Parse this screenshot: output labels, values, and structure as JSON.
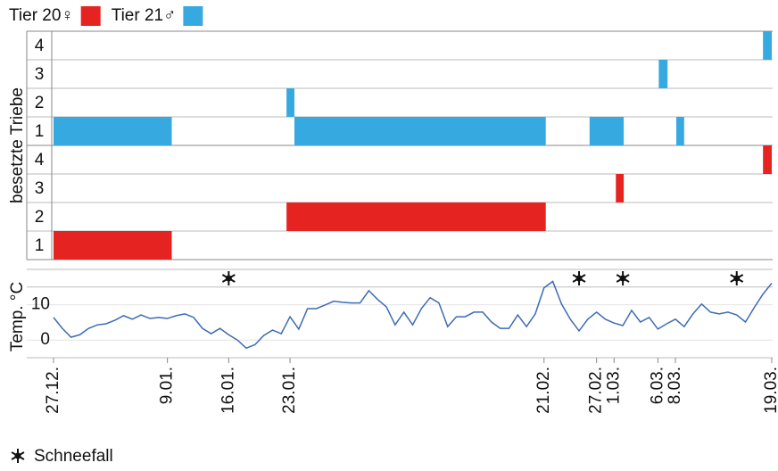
{
  "chart_data": {
    "type": "occupancy-timeline",
    "series": [
      {
        "name": "Tier 20♀",
        "color": "#e52421",
        "bars": [
          {
            "level": 1,
            "x": [
              0,
              13.5
            ]
          },
          {
            "level": 2,
            "x": [
              26.6,
              56.2
            ]
          },
          {
            "level": 3,
            "x": [
              64.2,
              65.1
            ]
          },
          {
            "level": 4,
            "x": [
              81,
              82
            ]
          }
        ]
      },
      {
        "name": "Tier 21♂",
        "color": "#36a9e1",
        "bars": [
          {
            "level": 1,
            "x": [
              0,
              13.5
            ]
          },
          {
            "level": 1,
            "x": [
              27.5,
              56.2
            ]
          },
          {
            "level": 1,
            "x": [
              61.2,
              65.1
            ]
          },
          {
            "level": 1,
            "x": [
              71.1,
              72
            ]
          },
          {
            "level": 2,
            "x": [
              26.6,
              27.5
            ]
          },
          {
            "level": 3,
            "x": [
              69.1,
              70.1
            ]
          },
          {
            "level": 4,
            "x": [
              81,
              82
            ]
          }
        ]
      }
    ],
    "levels": [
      "1",
      "2",
      "3",
      "4"
    ],
    "ylabel": "besetzte Triebe",
    "xlim": [
      0,
      82
    ],
    "xticks": [
      {
        "value": 0,
        "label": "27.12."
      },
      {
        "value": 13,
        "label": "9.01."
      },
      {
        "value": 20,
        "label": "16.01."
      },
      {
        "value": 27,
        "label": "23.01."
      },
      {
        "value": 56,
        "label": "21.02."
      },
      {
        "value": 62,
        "label": "27.02."
      },
      {
        "value": 64,
        "label": "1.03."
      },
      {
        "value": 69,
        "label": "6.03."
      },
      {
        "value": 71,
        "label": "8.03."
      },
      {
        "value": 82,
        "label": "19.03."
      }
    ],
    "temperature": {
      "type": "line",
      "ylabel": "Temp. °C",
      "color": "#3b6bb5",
      "ylim": [
        -5,
        20
      ],
      "yticks": [
        0,
        10
      ],
      "grid_values": [
        -5,
        15
      ],
      "values": [
        6.4,
        3.3,
        0.8,
        1.5,
        3.3,
        4.3,
        4.6,
        5.6,
        6.9,
        5.9,
        7.1,
        6.1,
        6.4,
        6.1,
        6.9,
        7.4,
        6.4,
        3.3,
        1.8,
        3.3,
        1.5,
        0,
        -2.3,
        -1.3,
        1.3,
        2.8,
        1.8,
        6.6,
        3.1,
        8.9,
        8.9,
        9.9,
        11.0,
        10.7,
        10.5,
        10.5,
        14.0,
        11.5,
        9.4,
        4.3,
        7.9,
        4.3,
        8.9,
        12.0,
        10.5,
        3.8,
        6.6,
        6.6,
        7.9,
        7.9,
        5.1,
        3.3,
        3.3,
        7.1,
        3.8,
        7.4,
        14.8,
        16.6,
        10.2,
        5.9,
        2.6,
        5.9,
        7.9,
        5.9,
        4.8,
        4.1,
        8.4,
        5.1,
        6.4,
        3.1,
        4.6,
        5.9,
        3.8,
        7.4,
        10.2,
        7.9,
        7.4,
        7.9,
        7.1,
        5.1,
        9.2,
        13.0,
        16.1
      ]
    },
    "snowfall": {
      "label": "Schneefall",
      "days": [
        20,
        60,
        65,
        78
      ]
    }
  }
}
